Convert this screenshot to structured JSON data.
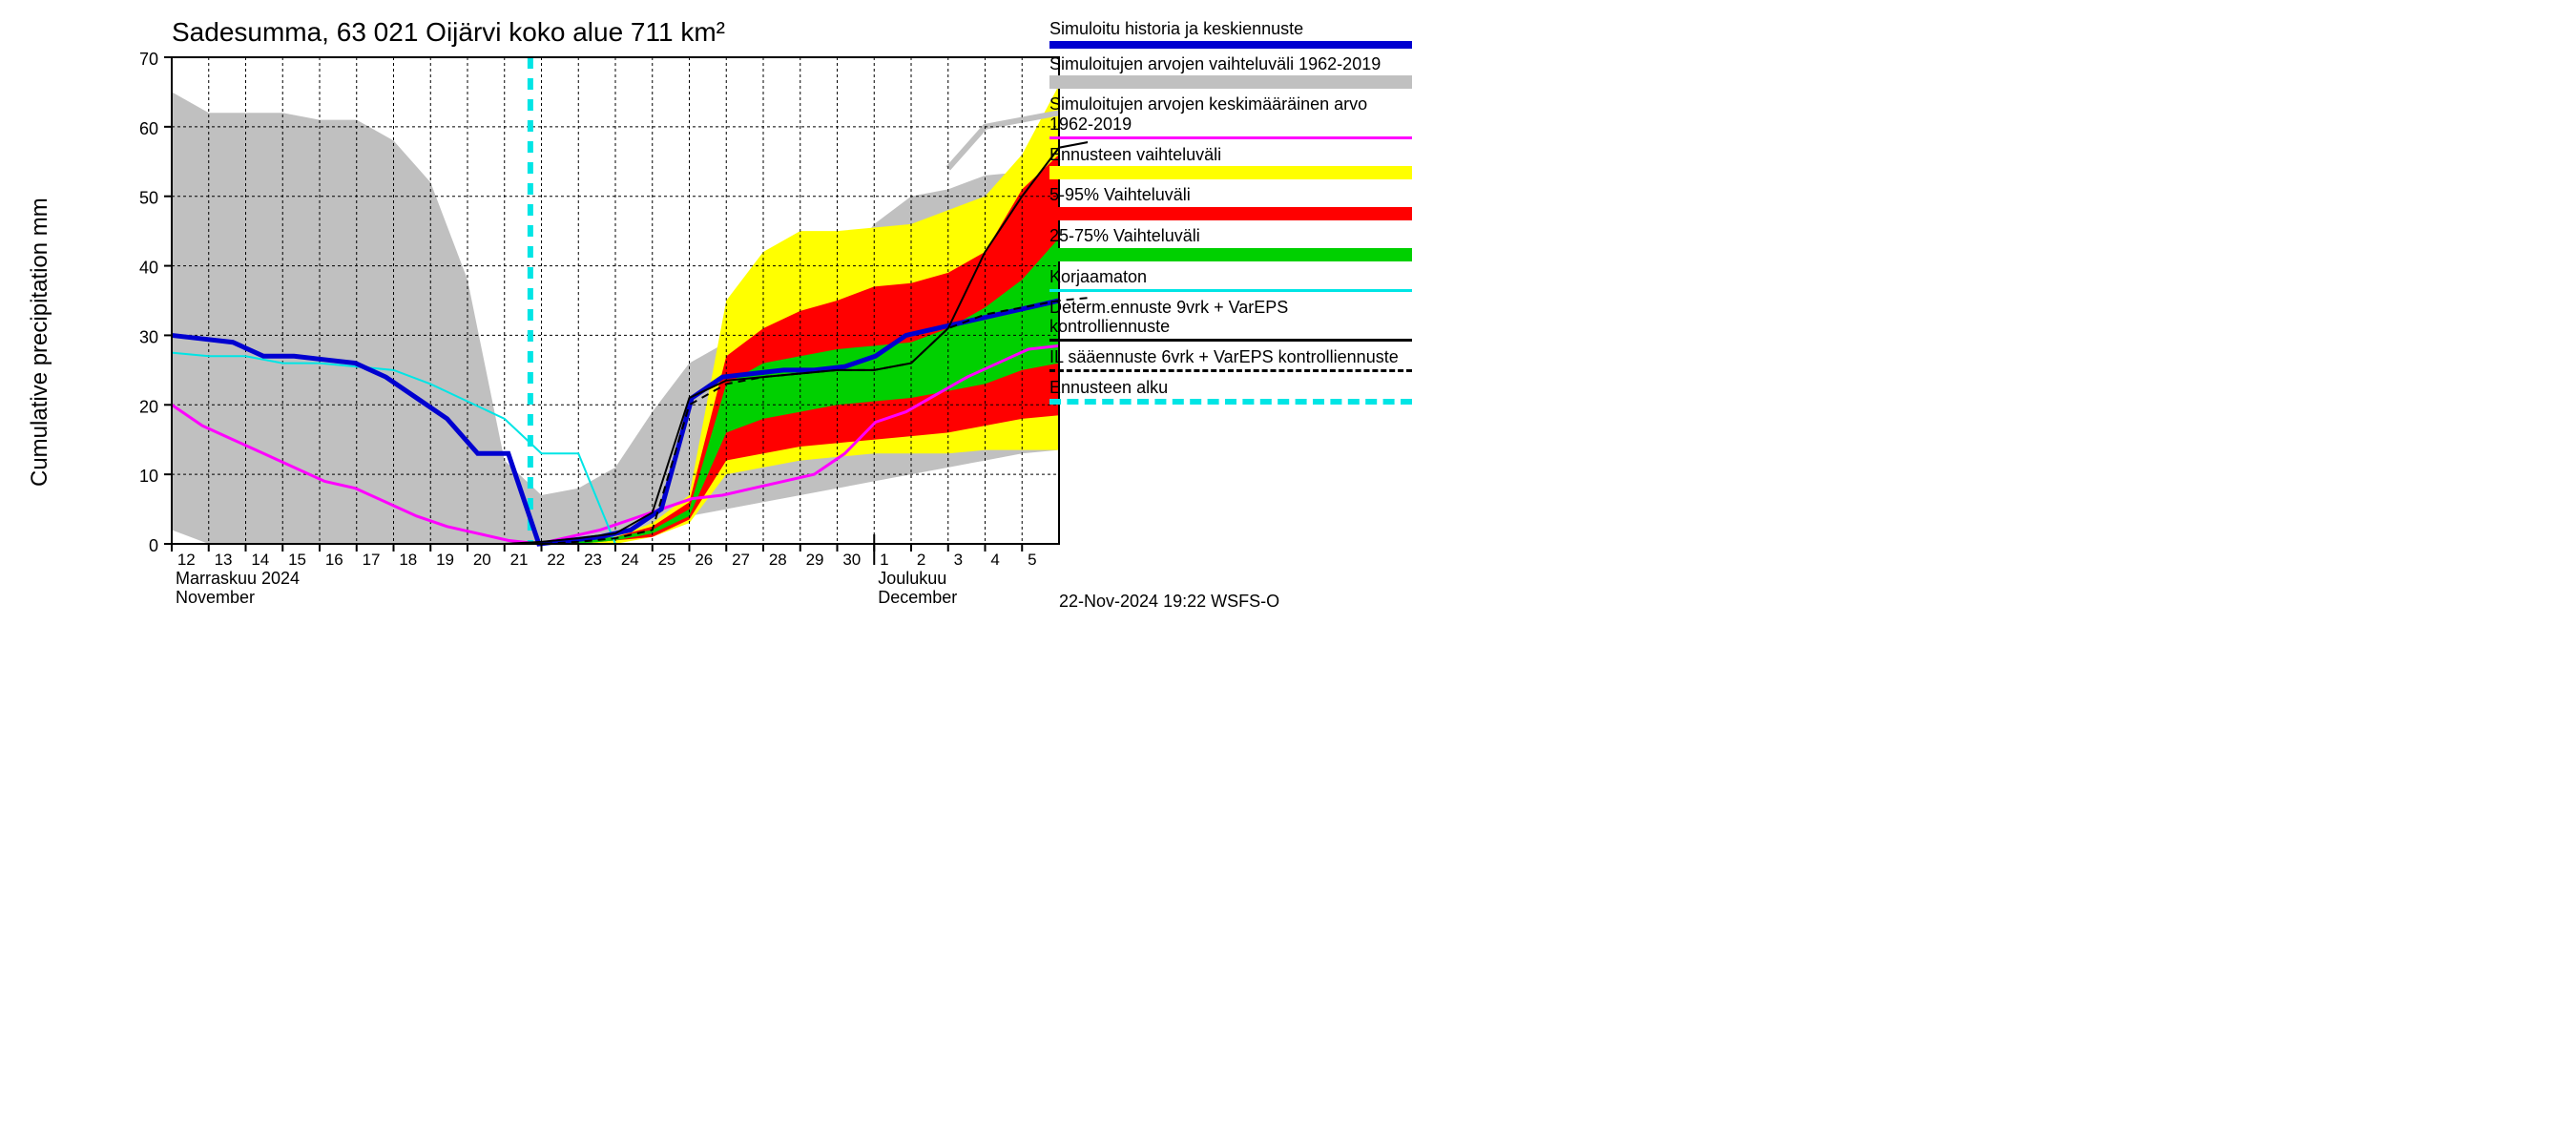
{
  "title": "Sadesumma, 63 021 Oijärvi koko alue 711 km²",
  "ylabel": "Cumulative precipitation   mm",
  "footer": "22-Nov-2024 19:22 WSFS-O",
  "chart": {
    "type": "line-area-forecast",
    "background_color": "#ffffff",
    "grid_color": "#000000",
    "grid_dash": "3,3",
    "ylim": [
      0,
      70
    ],
    "yticks": [
      0,
      10,
      20,
      30,
      40,
      50,
      60,
      70
    ],
    "x_days": [
      "12",
      "13",
      "14",
      "15",
      "16",
      "17",
      "18",
      "19",
      "20",
      "21",
      "22",
      "23",
      "24",
      "25",
      "26",
      "27",
      "28",
      "29",
      "30",
      "1",
      "2",
      "3",
      "4",
      "5"
    ],
    "x_month_labels": [
      {
        "fi": "Marraskuu 2024",
        "en": "November",
        "at_day_index": 0
      },
      {
        "fi": "Joulukuu",
        "en": "December",
        "at_day_index": 19
      }
    ],
    "month_divider_index": 19,
    "forecast_start_index": 9.7,
    "colors": {
      "hist_range": "#c0c0c0",
      "hist_mean": "#ff00ff",
      "simulated": "#0000d0",
      "uncorrected": "#00e5e5",
      "band_outer": "#ffff00",
      "band_5_95": "#ff0000",
      "band_25_75": "#00d000",
      "det9": "#000000",
      "il6": "#000000",
      "forecast_start": "#00e5e5"
    },
    "line_widths": {
      "simulated": 5,
      "hist_mean": 3,
      "uncorrected": 2,
      "det9": 2,
      "il6": 2,
      "forecast_start": 6
    },
    "series": {
      "hist_range_upper": [
        65,
        62,
        62,
        62,
        61,
        61,
        58,
        52,
        38,
        12,
        7,
        8,
        11,
        19,
        26,
        29,
        33,
        36,
        39,
        46,
        50,
        51,
        53,
        53.5,
        54
      ],
      "hist_range_lower": [
        2,
        0,
        0,
        0,
        0,
        0,
        0,
        0,
        0,
        0,
        0,
        0,
        0,
        2,
        4,
        5,
        6,
        7,
        8,
        9,
        10,
        11,
        12,
        13,
        13.5
      ],
      "hist_range_upper_right": [
        54,
        60,
        61,
        62
      ],
      "band_outer_upper": [
        0,
        0.5,
        1,
        3,
        7,
        35,
        42,
        45,
        45,
        45.5,
        46,
        48,
        50,
        56,
        66,
        68
      ],
      "band_outer_lower": [
        0,
        0,
        0,
        1,
        3,
        10,
        11,
        12,
        12.5,
        13,
        13,
        13,
        13.5,
        13.5,
        13.5,
        14
      ],
      "band_5_95_upper": [
        0,
        0.5,
        1,
        2.5,
        6,
        27,
        31,
        33.5,
        35,
        37,
        37.5,
        39,
        42,
        51,
        56,
        58
      ],
      "band_5_95_lower": [
        0,
        0,
        0.5,
        1,
        3.5,
        12,
        13,
        14,
        14.5,
        15,
        15.5,
        16,
        17,
        18,
        18.5,
        19
      ],
      "band_25_75_upper": [
        0,
        0.5,
        1,
        2,
        5,
        23,
        26,
        27,
        28,
        28.5,
        29,
        31,
        34,
        38,
        44,
        47
      ],
      "band_25_75_lower": [
        0,
        0,
        0.5,
        1.5,
        4,
        16,
        18,
        19,
        20,
        20.5,
        21,
        22,
        23,
        25,
        26,
        27
      ],
      "simulated": [
        30,
        29.5,
        29,
        27,
        27,
        26.5,
        26,
        24,
        21,
        18,
        13,
        13,
        0,
        0.5,
        1,
        2,
        5,
        21,
        24,
        24.5,
        25,
        25,
        25.5,
        27,
        30,
        31,
        32,
        33,
        34,
        35
      ],
      "uncorrected": [
        27.5,
        27,
        27,
        26,
        26,
        25.5,
        25,
        23,
        20.5,
        18,
        13,
        13,
        0
      ],
      "hist_mean": [
        20,
        17,
        15,
        13,
        11,
        9,
        8,
        6,
        4,
        2.5,
        1.5,
        0.5,
        0,
        1,
        2,
        3.5,
        5,
        6.5,
        7,
        8,
        9,
        10,
        13,
        17.5,
        19,
        21.5,
        24,
        26,
        28,
        28.5
      ],
      "det9": [
        0,
        0.3,
        0.8,
        1.5,
        4.5,
        21,
        23.5,
        24,
        24.5,
        25,
        25,
        26,
        31,
        42,
        50,
        57,
        58
      ],
      "il6": [
        0,
        0,
        0.3,
        0.8,
        2,
        20,
        23,
        24,
        24.5,
        25,
        25,
        26,
        31,
        33,
        34,
        35,
        35.5
      ]
    }
  },
  "legend": {
    "items": [
      {
        "label": "Simuloitu historia ja keskiennuste",
        "color": "#0000d0",
        "style": "thick"
      },
      {
        "label": "Simuloitujen arvojen vaihteluväli 1962-2019",
        "color": "#c0c0c0",
        "style": "block"
      },
      {
        "label": "Simuloitujen arvojen keskimääräinen arvo   1962-2019",
        "color": "#ff00ff",
        "style": "line"
      },
      {
        "label": "Ennusteen vaihteluväli",
        "color": "#ffff00",
        "style": "block"
      },
      {
        "label": "5-95% Vaihteluväli",
        "color": "#ff0000",
        "style": "block"
      },
      {
        "label": "25-75% Vaihteluväli",
        "color": "#00d000",
        "style": "block"
      },
      {
        "label": "Korjaamaton",
        "color": "#00e5e5",
        "style": "line"
      },
      {
        "label": "Determ.ennuste 9vrk + VarEPS kontrolliennuste",
        "color": "#000000",
        "style": "line"
      },
      {
        "label": "IL sääennuste 6vrk  +  VarEPS kontrolliennuste",
        "color": "#000000",
        "style": "dashed"
      },
      {
        "label": "Ennusteen alku",
        "color": "#00e5e5",
        "style": "dashed-thick"
      }
    ]
  }
}
